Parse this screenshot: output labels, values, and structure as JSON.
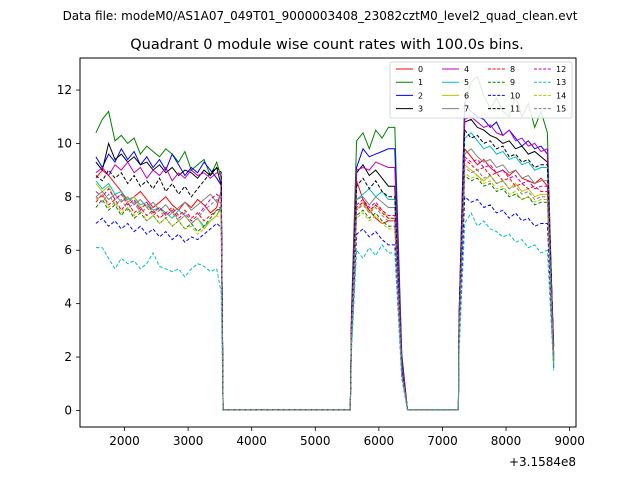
{
  "chart_data": {
    "type": "line",
    "suptitle": "Data file: modeM0/AS1A07_049T01_9000003408_23082cztM0_level2_quad_clean.evt",
    "title": "Quadrant 0 module wise count rates with 100.0s bins.",
    "xlabel": "",
    "ylabel": "",
    "x_offset_label": "+3.1584e8",
    "xlim": [
      1300,
      9100
    ],
    "ylim": [
      -0.62,
      13.2
    ],
    "x_ticks": [
      2000,
      3000,
      4000,
      5000,
      6000,
      7000,
      8000,
      9000
    ],
    "y_ticks": [
      0,
      2,
      4,
      6,
      8,
      10,
      12
    ],
    "legend_position": "top-right",
    "legend_columns": 4,
    "series": [
      {
        "name": "0",
        "color": "#ff0000",
        "dash": "solid",
        "values": [
          8.7,
          9.0,
          8.8,
          8.5,
          8.2,
          7.8,
          8.0,
          8.2,
          7.9,
          7.6,
          7.8,
          8.0,
          7.7,
          7.5,
          7.8,
          7.6,
          7.9,
          7.7,
          7.4,
          7.6,
          7.9,
          8.2,
          8.8,
          8.4,
          0.03,
          9.2,
          8.6,
          7.9,
          7.5,
          7.2,
          7.0,
          7.1,
          0.03,
          9.8,
          9.5,
          9.2,
          9.4,
          9.1,
          8.9,
          9.0,
          8.8,
          9.0,
          8.7,
          8.6,
          8.5,
          8.7,
          8.4,
          2.4
        ]
      },
      {
        "name": "1",
        "color": "#008000",
        "dash": "solid",
        "values": [
          10.4,
          10.9,
          11.2,
          10.1,
          10.3,
          10.0,
          10.2,
          9.6,
          9.9,
          9.7,
          9.5,
          9.8,
          9.6,
          9.3,
          9.7,
          9.0,
          9.2,
          9.4,
          8.8,
          9.3,
          9.6,
          9.2,
          9.0,
          8.9,
          0.03,
          9.3,
          10.1,
          10.4,
          9.8,
          10.5,
          10.2,
          10.6,
          0.03,
          11.5,
          12.3,
          12.5,
          11.8,
          11.3,
          11.7,
          11.2,
          11.0,
          11.8,
          11.0,
          11.5,
          10.6,
          11.2,
          10.4,
          10.8,
          10.0,
          1.8
        ]
      },
      {
        "name": "2",
        "color": "#0000ff",
        "dash": "solid",
        "values": [
          9.5,
          9.1,
          9.6,
          9.3,
          9.8,
          9.4,
          9.7,
          9.2,
          9.5,
          9.1,
          9.4,
          9.0,
          9.6,
          9.2,
          8.8,
          9.1,
          8.9,
          9.3,
          9.0,
          8.7,
          8.9,
          9.1,
          8.6,
          0.03,
          8.5,
          9.1,
          9.8,
          9.5,
          9.6,
          9.7,
          9.8,
          0.03,
          11.5,
          11.2,
          11.0,
          10.9,
          10.6,
          10.8,
          10.3,
          10.5,
          10.2,
          9.9,
          10.1,
          9.8,
          9.9,
          9.6,
          9.8,
          2.0
        ]
      },
      {
        "name": "3",
        "color": "#000000",
        "dash": "solid",
        "values": [
          9.3,
          9.0,
          10.0,
          9.4,
          9.6,
          9.3,
          9.5,
          9.2,
          9.3,
          9.0,
          9.2,
          8.9,
          9.1,
          8.8,
          9.0,
          8.9,
          8.7,
          9.0,
          8.8,
          9.1,
          8.6,
          0.03,
          8.4,
          8.9,
          9.2,
          8.8,
          9.0,
          8.7,
          8.4,
          0.03,
          10.8,
          10.9,
          10.6,
          10.5,
          10.3,
          10.2,
          10.0,
          10.1,
          9.8,
          9.9,
          9.6,
          9.7,
          9.5,
          9.3,
          9.5,
          2.4
        ]
      },
      {
        "name": "4",
        "color": "#bf00bf",
        "dash": "solid",
        "values": [
          8.9,
          9.1,
          8.8,
          9.2,
          9.0,
          9.3,
          8.9,
          9.1,
          8.7,
          9.0,
          8.8,
          9.1,
          8.6,
          8.9,
          8.7,
          9.0,
          8.8,
          8.9,
          8.7,
          8.9,
          9.2,
          9.0,
          0.03,
          8.6,
          9.0,
          9.1,
          9.0,
          9.3,
          9.2,
          9.1,
          0.03,
          10.9,
          11.0,
          10.8,
          10.6,
          10.7,
          10.4,
          10.3,
          10.5,
          10.1,
          10.2,
          9.9,
          10.0,
          9.7,
          9.8,
          2.1
        ]
      },
      {
        "name": "5",
        "color": "#00bfbf",
        "dash": "solid",
        "values": [
          8.6,
          8.3,
          8.5,
          8.1,
          8.2,
          7.9,
          8.0,
          7.7,
          7.8,
          7.5,
          7.6,
          7.4,
          7.2,
          7.5,
          7.3,
          7.0,
          7.2,
          6.9,
          7.1,
          7.3,
          7.5,
          7.8,
          0.03,
          7.6,
          7.9,
          8.1,
          8.3,
          8.0,
          8.2,
          7.9,
          0.03,
          10.2,
          10.4,
          10.1,
          9.8,
          9.9,
          9.6,
          9.7,
          9.4,
          9.5,
          9.2,
          9.3,
          9.0,
          9.1,
          1.9
        ]
      },
      {
        "name": "6",
        "color": "#bfbf00",
        "dash": "solid",
        "values": [
          8.5,
          8.2,
          8.4,
          7.9,
          8.1,
          7.8,
          8.0,
          7.6,
          7.7,
          7.4,
          7.6,
          7.3,
          7.5,
          7.1,
          7.3,
          7.0,
          7.2,
          6.8,
          7.1,
          7.3,
          7.7,
          0.03,
          7.0,
          7.5,
          7.8,
          7.4,
          7.7,
          7.5,
          7.2,
          0.03,
          9.2,
          9.0,
          8.8,
          8.6,
          8.8,
          8.5,
          8.6,
          8.3,
          8.5,
          8.2,
          8.3,
          8.0,
          8.1,
          1.7
        ]
      },
      {
        "name": "7",
        "color": "#808080",
        "dash": "solid",
        "values": [
          8.0,
          8.2,
          7.9,
          8.1,
          7.8,
          8.0,
          7.7,
          7.9,
          7.6,
          7.8,
          7.5,
          7.7,
          7.4,
          7.6,
          7.8,
          7.5,
          7.7,
          7.9,
          8.1,
          7.8,
          8.3,
          0.03,
          7.5,
          7.9,
          8.0,
          7.7,
          8.0,
          7.8,
          7.6,
          0.03,
          9.6,
          9.8,
          9.5,
          9.3,
          9.4,
          9.1,
          9.2,
          8.9,
          9.0,
          8.7,
          8.8,
          8.5,
          8.6,
          2.0
        ]
      },
      {
        "name": "8",
        "color": "#ff0000",
        "dash": "dashed",
        "values": [
          7.8,
          8.1,
          7.7,
          7.9,
          7.5,
          7.8,
          7.4,
          7.6,
          7.3,
          7.5,
          7.2,
          7.4,
          7.6,
          7.3,
          7.5,
          7.2,
          7.4,
          7.1,
          7.3,
          7.5,
          7.8,
          0.03,
          7.3,
          7.6,
          7.8,
          7.5,
          7.7,
          7.4,
          7.2,
          0.03,
          9.4,
          9.2,
          9.0,
          9.1,
          8.8,
          8.9,
          8.6,
          8.7,
          8.4,
          8.5,
          8.3,
          8.4,
          8.2,
          1.9
        ]
      },
      {
        "name": "9",
        "color": "#008000",
        "dash": "dashed",
        "values": [
          7.6,
          7.9,
          7.5,
          7.7,
          7.3,
          7.6,
          7.2,
          7.4,
          7.1,
          7.3,
          7.0,
          7.2,
          6.9,
          7.1,
          6.8,
          7.0,
          6.7,
          6.9,
          7.2,
          7.5,
          7.7,
          0.03,
          7.0,
          7.3,
          7.5,
          7.2,
          7.4,
          7.1,
          6.9,
          0.03,
          8.8,
          8.6,
          8.7,
          8.4,
          8.5,
          8.2,
          8.3,
          8.0,
          8.1,
          7.9,
          8.0,
          7.7,
          7.8,
          1.7
        ]
      },
      {
        "name": "10",
        "color": "#0000ff",
        "dash": "dashed",
        "values": [
          7.0,
          7.2,
          6.9,
          7.1,
          6.8,
          7.0,
          6.7,
          6.9,
          6.6,
          6.8,
          6.5,
          6.7,
          6.4,
          6.6,
          6.3,
          6.5,
          6.4,
          6.6,
          6.8,
          7.0,
          0.03,
          6.3,
          6.6,
          6.8,
          6.5,
          6.7,
          6.4,
          6.2,
          0.03,
          8.0,
          7.8,
          7.9,
          7.6,
          7.7,
          7.4,
          7.5,
          7.2,
          7.4,
          7.1,
          7.2,
          6.9,
          7.0,
          1.6
        ]
      },
      {
        "name": "11",
        "color": "#000000",
        "dash": "dashed",
        "values": [
          8.8,
          8.6,
          9.0,
          8.7,
          8.9,
          8.5,
          8.8,
          8.4,
          8.6,
          8.3,
          8.7,
          8.2,
          8.5,
          8.1,
          8.4,
          8.0,
          8.3,
          8.6,
          8.9,
          9.1,
          0.03,
          8.0,
          8.4,
          8.7,
          8.3,
          8.6,
          8.2,
          8.0,
          0.03,
          10.5,
          10.2,
          10.3,
          10.0,
          10.1,
          9.8,
          9.9,
          9.5,
          9.6,
          9.3,
          9.4,
          9.1,
          9.2,
          2.1
        ]
      },
      {
        "name": "12",
        "color": "#bf00bf",
        "dash": "dashed",
        "values": [
          8.2,
          8.0,
          8.3,
          7.9,
          8.1,
          7.7,
          7.9,
          7.5,
          7.8,
          7.4,
          7.6,
          7.3,
          7.5,
          7.2,
          7.4,
          7.1,
          7.3,
          7.6,
          7.9,
          8.1,
          0.03,
          7.4,
          7.7,
          7.9,
          7.6,
          7.8,
          7.5,
          7.3,
          0.03,
          9.5,
          9.3,
          9.4,
          9.1,
          9.2,
          8.9,
          9.0,
          8.7,
          8.8,
          8.5,
          8.6,
          8.3,
          8.4,
          1.9
        ]
      },
      {
        "name": "13",
        "color": "#00bfbf",
        "dash": "dashed",
        "values": [
          6.1,
          6.1,
          5.7,
          5.3,
          5.7,
          5.5,
          5.6,
          5.3,
          5.5,
          5.9,
          5.4,
          5.3,
          5.2,
          5.3,
          5.0,
          5.3,
          5.5,
          5.4,
          5.2,
          5.3,
          5.4,
          5.0,
          5.3,
          5.2,
          4.5,
          0.03,
          5.6,
          6.0,
          5.7,
          6.1,
          5.8,
          6.2,
          5.9,
          0.03,
          7.0,
          7.4,
          6.9,
          7.1,
          6.8,
          6.7,
          6.5,
          6.6,
          6.3,
          6.4,
          6.1,
          6.2,
          5.9,
          6.0,
          5.7,
          1.5
        ]
      },
      {
        "name": "14",
        "color": "#bfbf00",
        "dash": "dashed",
        "values": [
          7.9,
          8.1,
          7.6,
          7.8,
          7.4,
          7.6,
          7.3,
          7.5,
          7.1,
          7.3,
          7.0,
          7.2,
          6.9,
          7.1,
          6.8,
          6.9,
          6.6,
          6.8,
          7.1,
          7.3,
          0.03,
          6.9,
          7.2,
          7.4,
          7.1,
          7.3,
          7.0,
          6.8,
          0.03,
          8.9,
          8.7,
          8.8,
          8.5,
          8.6,
          8.3,
          8.4,
          8.1,
          8.2,
          7.9,
          8.0,
          7.8,
          7.9,
          1.8
        ]
      },
      {
        "name": "15",
        "color": "#808080",
        "dash": "dashed",
        "values": [
          8.0,
          7.8,
          8.1,
          7.7,
          7.9,
          7.5,
          7.8,
          7.4,
          7.6,
          7.3,
          7.5,
          7.2,
          7.4,
          7.1,
          7.3,
          7.0,
          7.2,
          7.5,
          7.7,
          7.9,
          0.03,
          7.2,
          7.5,
          7.7,
          7.4,
          7.6,
          7.3,
          7.1,
          0.03,
          9.1,
          8.9,
          9.0,
          8.7,
          8.8,
          8.5,
          8.6,
          8.3,
          8.4,
          8.1,
          8.2,
          7.9,
          8.0,
          1.9
        ]
      }
    ]
  }
}
